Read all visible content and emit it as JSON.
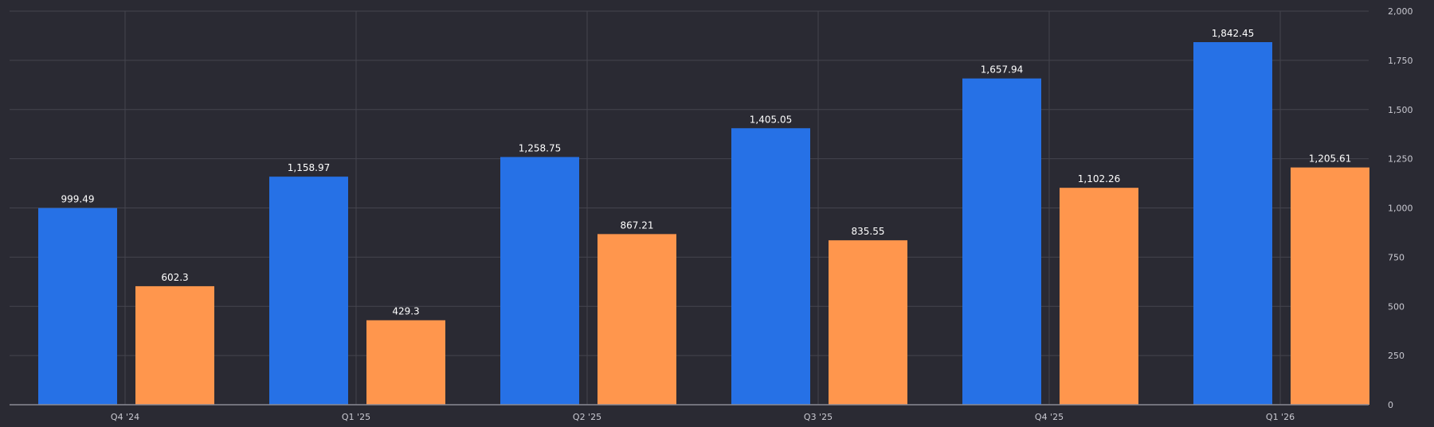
{
  "chart_data": {
    "type": "bar",
    "categories": [
      "Q4 '24",
      "Q1 '25",
      "Q2 '25",
      "Q3 '25",
      "Q4 '25",
      "Q1 '26"
    ],
    "series": [
      {
        "color": "#2671e6",
        "values": [
          999.49,
          1158.97,
          1258.75,
          1405.05,
          1657.94,
          1842.45
        ],
        "labels": [
          "999.49",
          "1,158.97",
          "1,258.75",
          "1,405.05",
          "1,657.94",
          "1,842.45"
        ]
      },
      {
        "color": "#ff964d",
        "values": [
          602.3,
          429.3,
          867.21,
          835.55,
          1102.26,
          1205.61
        ],
        "labels": [
          "602.3",
          "429.3",
          "867.21",
          "835.55",
          "1,102.26",
          "1,205.61"
        ]
      }
    ],
    "ylim": [
      0,
      2000
    ],
    "yticks": [
      0,
      250,
      500,
      750,
      1000,
      1250,
      1500,
      1750,
      2000
    ],
    "ytick_labels": [
      "0",
      "250",
      "500",
      "750",
      "1,000",
      "1,250",
      "1,500",
      "1,750",
      "2,000"
    ],
    "y_axis_position": "right",
    "grid": true,
    "legend": "none",
    "xlabel": "",
    "ylabel": "",
    "title": ""
  }
}
